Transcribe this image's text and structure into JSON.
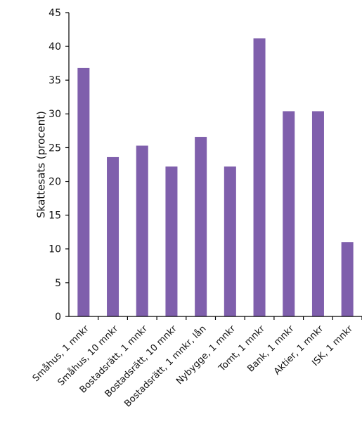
{
  "chart_data": {
    "type": "bar",
    "title": "",
    "xlabel": "",
    "ylabel": "Skattesats (procent)",
    "ylim": [
      0,
      45
    ],
    "yticks": [
      "0",
      "5",
      "10",
      "15",
      "20",
      "25",
      "30",
      "35",
      "40",
      "45"
    ],
    "grid": false,
    "legend": "none",
    "categories": [
      "Småhus, 1 mnkr",
      "Småhus, 10 mnkr",
      "Bostadsrätt, 1 mnkr",
      "Bostadsrätt, 10 mnkr",
      "Bostadsrätt, 1 mnkr, lån",
      "Nybygge, 1 mnkr",
      "Tomt, 1 mnkr",
      "Bank, 1 mnkr",
      "Aktier, 1 mnkr",
      "ISK, 1 mnkr"
    ],
    "series": [
      {
        "values": [
          36.8,
          23.6,
          25.3,
          22.2,
          26.6,
          22.2,
          41.2,
          30.4,
          30.4,
          11.0
        ],
        "color": "#7f5fac"
      }
    ]
  }
}
